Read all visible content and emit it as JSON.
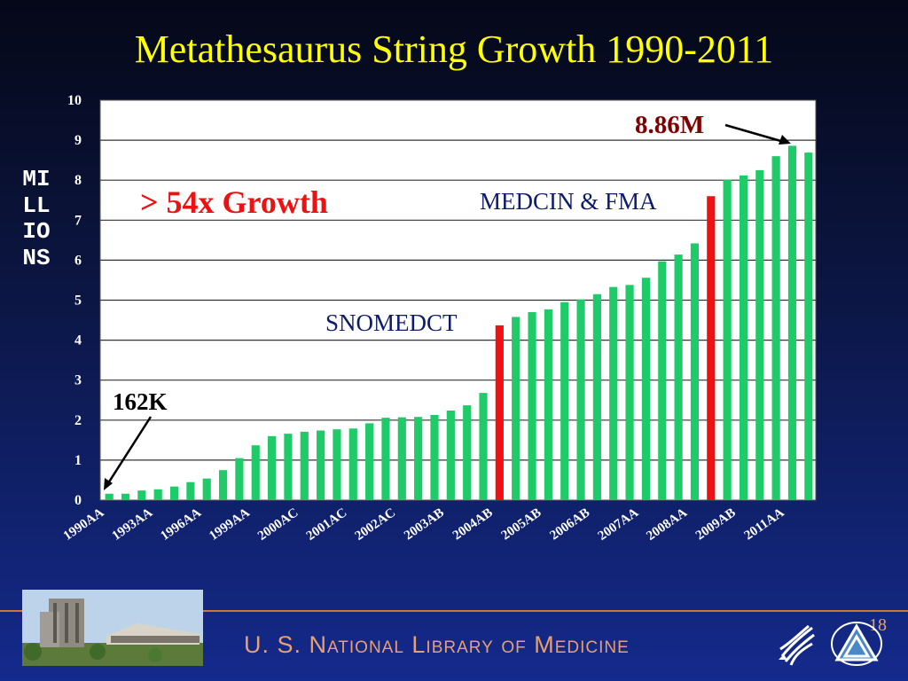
{
  "slide": {
    "title": "Metathesaurus String Growth 1990-2011",
    "y_label": "MILLIONS",
    "growth_note": "> 54x Growth",
    "annotation_start": "162K",
    "annotation_end": "8.86M",
    "annotation_snomed": "SNOMEDCT",
    "annotation_medcin": "MEDCIN & FMA",
    "footer_org": "U. S. National Library of Medicine",
    "page_number": "18",
    "colors": {
      "bar": "#1fca68",
      "highlight_bar": "#ee1111",
      "title": "#ffff00",
      "note": "#ee1111",
      "text_dark": "#0d1b6e",
      "annotation_text": "#800000"
    }
  },
  "chart_data": {
    "type": "bar",
    "title": "Metathesaurus String Growth 1990-2011",
    "ylabel": "MILLIONS",
    "ylim": [
      0,
      10
    ],
    "yticks": [
      "0",
      "1",
      "2",
      "3",
      "4",
      "5",
      "6",
      "7",
      "8",
      "9",
      "10"
    ],
    "grid": true,
    "x_tick_labels": [
      "1990AA",
      "1993AA",
      "1996AA",
      "1999AA",
      "2000AC",
      "2001AC",
      "2002AC",
      "2003AB",
      "2004AB",
      "2005AB",
      "2006AB",
      "2007AA",
      "2008AA",
      "2009AB",
      "2011AA"
    ],
    "values": [
      0.16,
      0.16,
      0.24,
      0.27,
      0.34,
      0.45,
      0.54,
      0.75,
      1.05,
      1.37,
      1.6,
      1.66,
      1.71,
      1.74,
      1.77,
      1.79,
      1.92,
      2.06,
      2.07,
      2.08,
      2.13,
      2.24,
      2.37,
      2.68,
      4.37,
      4.58,
      4.7,
      4.77,
      4.95,
      5.02,
      5.15,
      5.33,
      5.38,
      5.56,
      5.97,
      6.14,
      6.42,
      7.6,
      8.01,
      8.12,
      8.25,
      8.6,
      8.86,
      8.69
    ],
    "highlighted_indices": [
      24,
      37
    ]
  }
}
